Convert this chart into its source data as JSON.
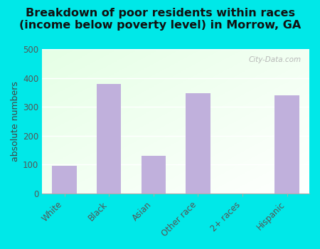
{
  "categories": [
    "White",
    "Black",
    "Asian",
    "Other race",
    "2+ races",
    "Hispanic"
  ],
  "values": [
    95,
    380,
    130,
    347,
    0,
    340
  ],
  "bar_color": "#c0b0dc",
  "title_line1": "Breakdown of poor residents within races",
  "title_line2": "(income below poverty level) in Morrow, GA",
  "ylabel": "absolute numbers",
  "ylim": [
    0,
    500
  ],
  "yticks": [
    0,
    100,
    200,
    300,
    400,
    500
  ],
  "outer_bg": "#00e8e8",
  "title_fontsize": 11.5,
  "ylabel_fontsize": 9,
  "tick_fontsize": 8.5,
  "watermark": "City-Data.com"
}
